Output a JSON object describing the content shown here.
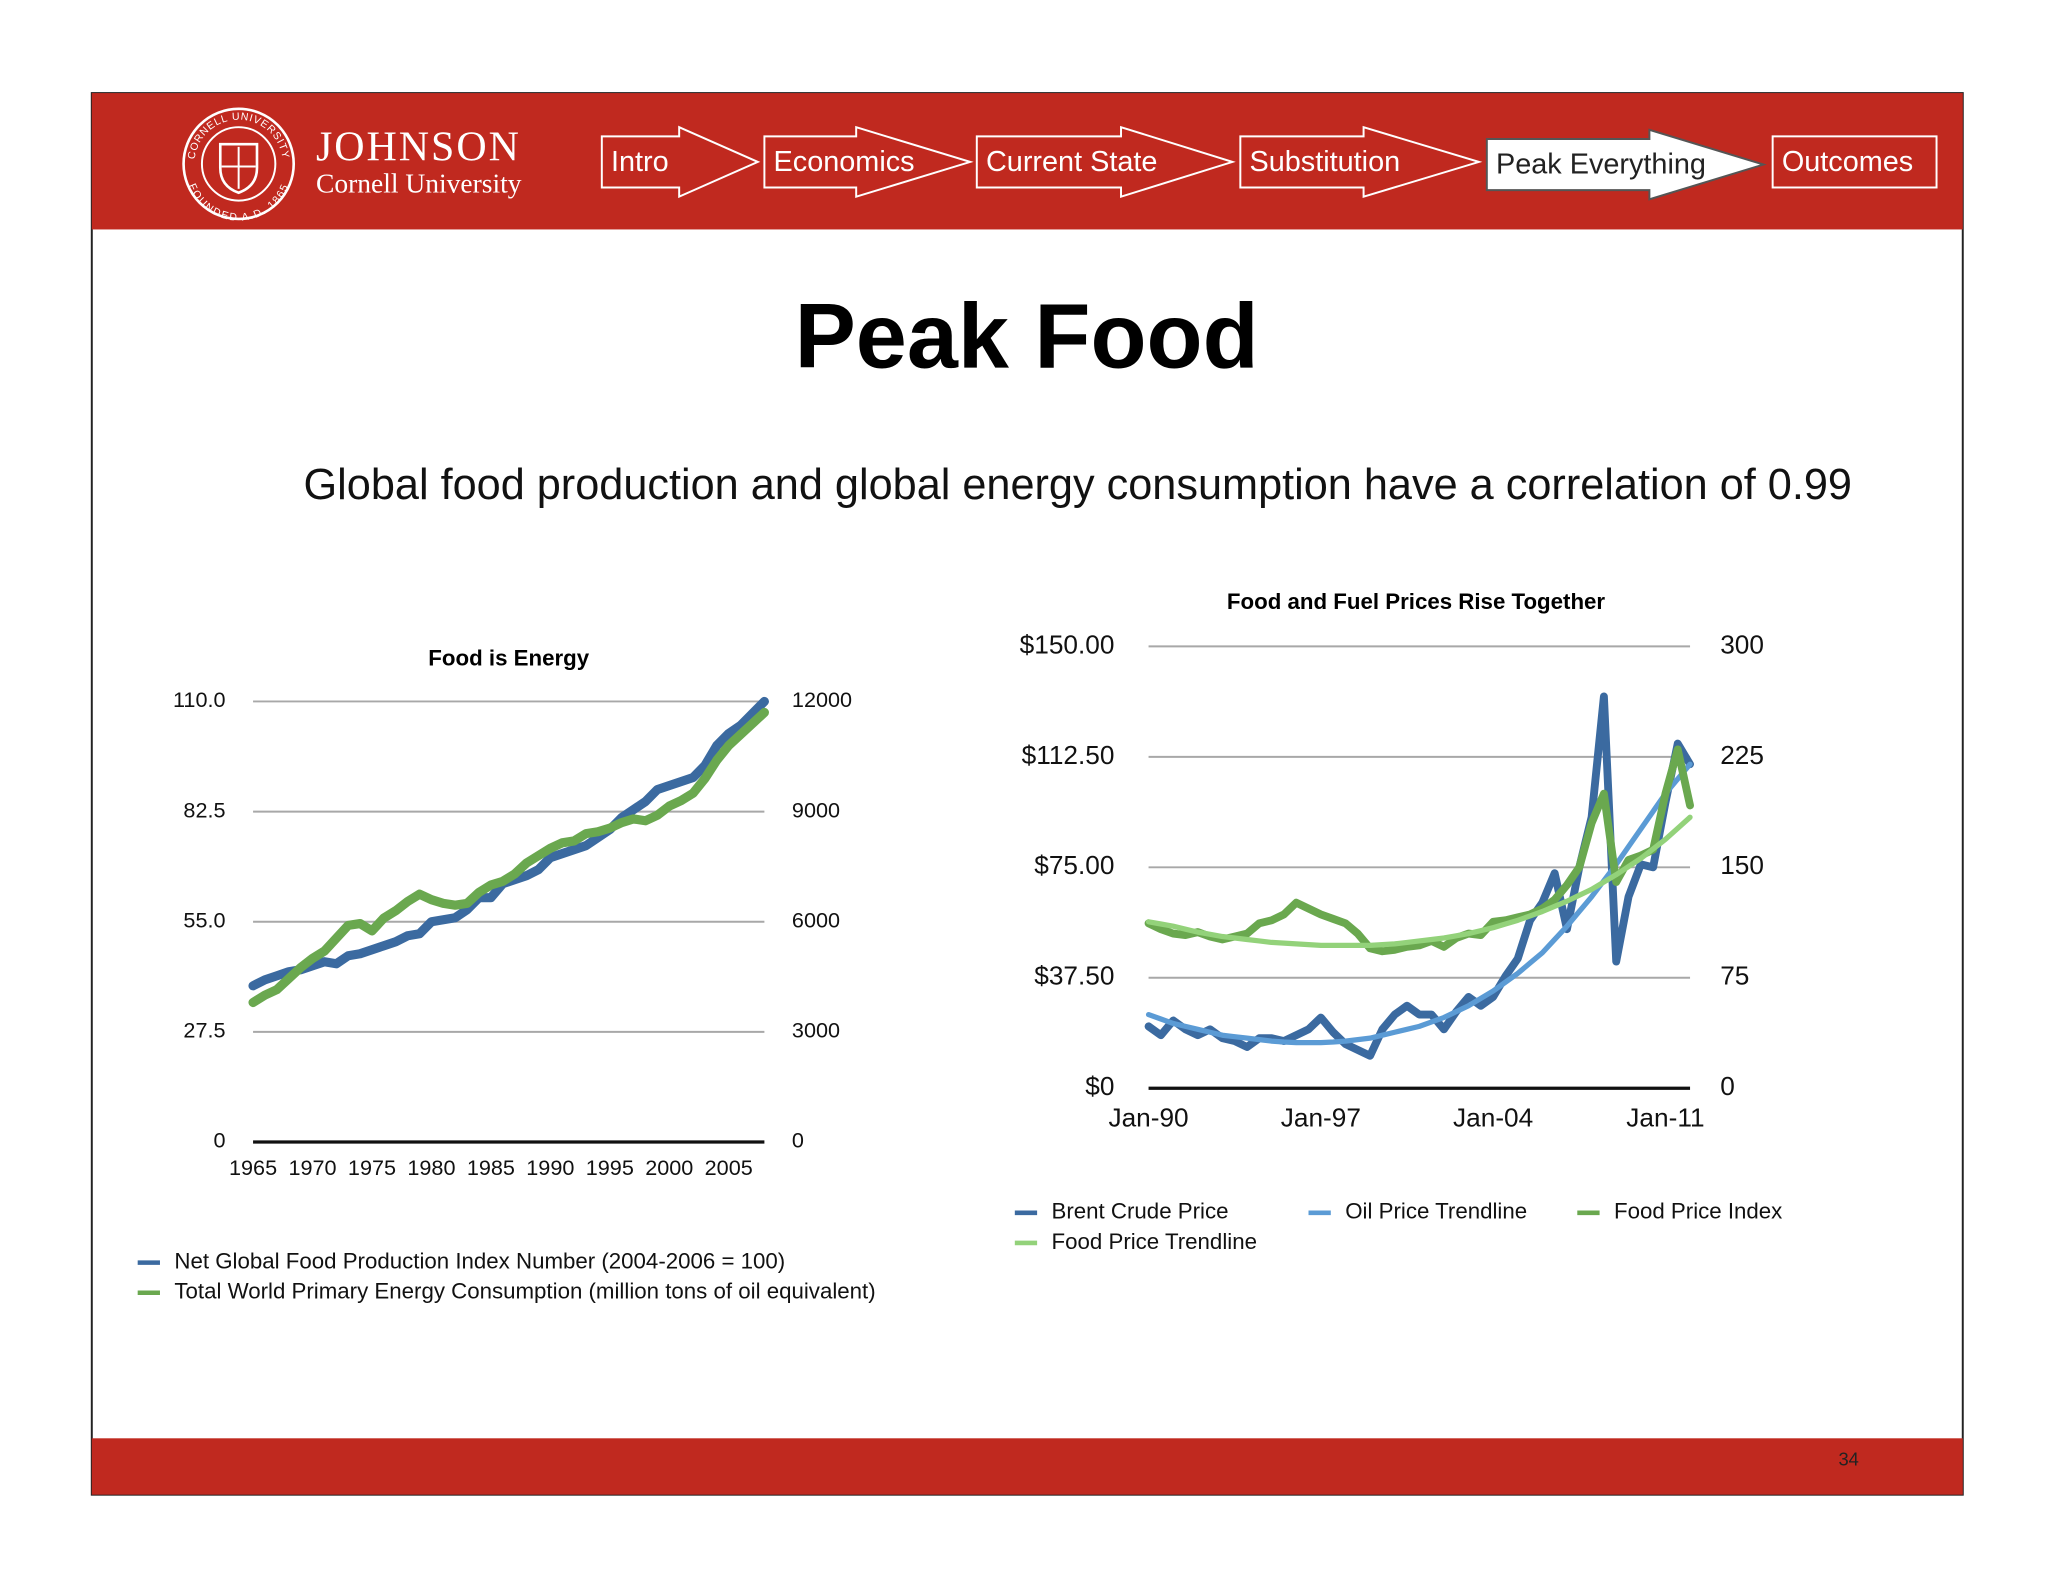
{
  "header": {
    "seal_text": [
      "CORNELL UNIVERSITY",
      "FOUNDED A.D. 1865"
    ],
    "school": "JOHNSON",
    "university": "Cornell University",
    "nav": [
      {
        "label": "Intro"
      },
      {
        "label": "Economics"
      },
      {
        "label": "Current State"
      },
      {
        "label": "Substitution"
      },
      {
        "label": "Peak Everything",
        "active": true
      },
      {
        "label": "Outcomes"
      }
    ]
  },
  "title": "Peak Food",
  "subtitle": "Global food production and global energy consumption have a correlation of 0.99",
  "page_number": "34",
  "chart_data": [
    {
      "type": "line",
      "title": "Food is Energy",
      "x": [
        1965,
        1966,
        1967,
        1968,
        1969,
        1970,
        1971,
        1972,
        1973,
        1974,
        1975,
        1976,
        1977,
        1978,
        1979,
        1980,
        1981,
        1982,
        1983,
        1984,
        1985,
        1986,
        1987,
        1988,
        1989,
        1990,
        1991,
        1992,
        1993,
        1994,
        1995,
        1996,
        1997,
        1998,
        1999,
        2000,
        2001,
        2002,
        2003,
        2004,
        2005,
        2006,
        2007,
        2008
      ],
      "xlim": [
        1965,
        2008
      ],
      "xticks": [
        1965,
        1970,
        1975,
        1980,
        1985,
        1990,
        1995,
        2000,
        2005
      ],
      "ylim": [
        0,
        110
      ],
      "yticks": [
        {
          "value": 0,
          "label": "0"
        },
        {
          "value": 27.5,
          "label": "27.5"
        },
        {
          "value": 55,
          "label": "55.0"
        },
        {
          "value": 82.5,
          "label": "82.5"
        },
        {
          "value": 110,
          "label": "110.0"
        }
      ],
      "y2lim": [
        0,
        12000
      ],
      "y2ticks": [
        0,
        3000,
        6000,
        9000,
        12000
      ],
      "grid": true,
      "legend": "bottom-left",
      "series": [
        {
          "name": "Net Global Food Production Index Number (2004-2006 = 100)",
          "color": "#3b6aa0",
          "values": [
            39,
            40.5,
            41.5,
            42.5,
            43,
            44,
            45,
            44.5,
            46.5,
            47,
            48,
            49,
            50,
            51.5,
            52,
            55,
            55.5,
            56,
            58,
            61,
            61,
            64.5,
            65.5,
            66.5,
            68,
            71,
            72,
            73,
            74,
            76,
            78,
            81,
            83,
            85,
            88,
            89,
            90,
            91,
            94,
            99,
            102,
            104,
            107,
            110
          ]
        },
        {
          "name": "Total World Primary Energy Consumption (million tons of oil equivalent)",
          "color": "#6aa84f",
          "axis": "y2",
          "values": [
            3800,
            4000,
            4150,
            4450,
            4750,
            5000,
            5200,
            5550,
            5900,
            5950,
            5750,
            6100,
            6300,
            6550,
            6750,
            6600,
            6500,
            6450,
            6500,
            6800,
            7000,
            7100,
            7300,
            7600,
            7800,
            8000,
            8150,
            8200,
            8400,
            8450,
            8550,
            8700,
            8800,
            8750,
            8900,
            9150,
            9300,
            9500,
            9900,
            10400,
            10800,
            11100,
            11400,
            11700
          ]
        }
      ]
    },
    {
      "type": "line",
      "title": "Food and Fuel Prices Rise Together",
      "categories": [
        "Jan-90",
        null,
        null,
        null,
        null,
        null,
        null,
        null,
        null,
        null,
        null,
        null,
        null,
        null,
        "Jan-97",
        null,
        null,
        null,
        null,
        null,
        null,
        null,
        null,
        null,
        null,
        null,
        null,
        null,
        "Jan-04",
        null,
        null,
        null,
        null,
        null,
        null,
        null,
        null,
        null,
        null,
        null,
        null,
        null,
        "Jan-11",
        null,
        null
      ],
      "ylim": [
        0,
        150
      ],
      "yticks": [
        {
          "value": 0,
          "label": "$0"
        },
        {
          "value": 37.5,
          "label": "$37.50"
        },
        {
          "value": 75,
          "label": "$75.00"
        },
        {
          "value": 112.5,
          "label": "$112.50"
        },
        {
          "value": 150,
          "label": "$150.00"
        }
      ],
      "y2lim": [
        0,
        300
      ],
      "y2ticks": [
        0,
        75,
        150,
        225,
        300
      ],
      "grid": true,
      "legend": "bottom",
      "series": [
        {
          "name": "Brent Crude Price",
          "color": "#3b6aa0",
          "values": [
            21,
            18,
            23,
            20,
            18,
            20,
            17,
            16,
            14,
            17,
            17,
            16,
            18,
            20,
            24,
            19,
            15,
            13,
            11,
            20,
            25,
            28,
            25,
            25,
            20,
            26,
            31,
            28,
            31,
            38,
            44,
            57,
            63,
            73,
            54,
            75,
            92,
            133,
            43,
            65,
            76,
            75,
            97,
            117,
            110
          ]
        },
        {
          "name": "Oil Price Trendline",
          "color": "#5b9bd5",
          "values": [
            25,
            23.5,
            22,
            21,
            20,
            19,
            18,
            17.5,
            17,
            16.5,
            16,
            15.7,
            15.5,
            15.5,
            15.5,
            15.7,
            16,
            16.5,
            17,
            18,
            19,
            20,
            21,
            22.5,
            24,
            26,
            28,
            30.5,
            33,
            36,
            39,
            42.5,
            46,
            50.5,
            55,
            60,
            65,
            70.5,
            76,
            82,
            88,
            94,
            100,
            105,
            110
          ]
        },
        {
          "name": "Food Price Index",
          "color": "#6aa84f",
          "axis": "y2",
          "values": [
            112,
            108,
            105,
            104,
            106,
            103,
            101,
            103,
            105,
            112,
            114,
            118,
            126,
            122,
            118,
            115,
            112,
            105,
            95,
            93,
            94,
            96,
            97,
            100,
            96,
            102,
            105,
            104,
            113,
            114,
            116,
            118,
            122,
            128,
            138,
            150,
            180,
            200,
            140,
            155,
            158,
            162,
            200,
            230,
            192
          ]
        },
        {
          "name": "Food Price Trendline",
          "color": "#93d27a",
          "axis": "y2",
          "values": [
            113,
            111.5,
            110,
            108,
            106,
            104.5,
            103,
            102,
            101,
            100,
            99,
            98.5,
            98,
            97.5,
            97,
            97,
            97,
            97,
            97,
            97.5,
            98,
            99,
            100,
            101,
            102,
            103.5,
            105,
            107,
            109,
            111.5,
            114,
            117,
            120,
            123.5,
            127,
            131,
            135,
            140,
            145,
            150.5,
            156,
            162.5,
            169,
            176.5,
            184
          ]
        }
      ]
    }
  ]
}
